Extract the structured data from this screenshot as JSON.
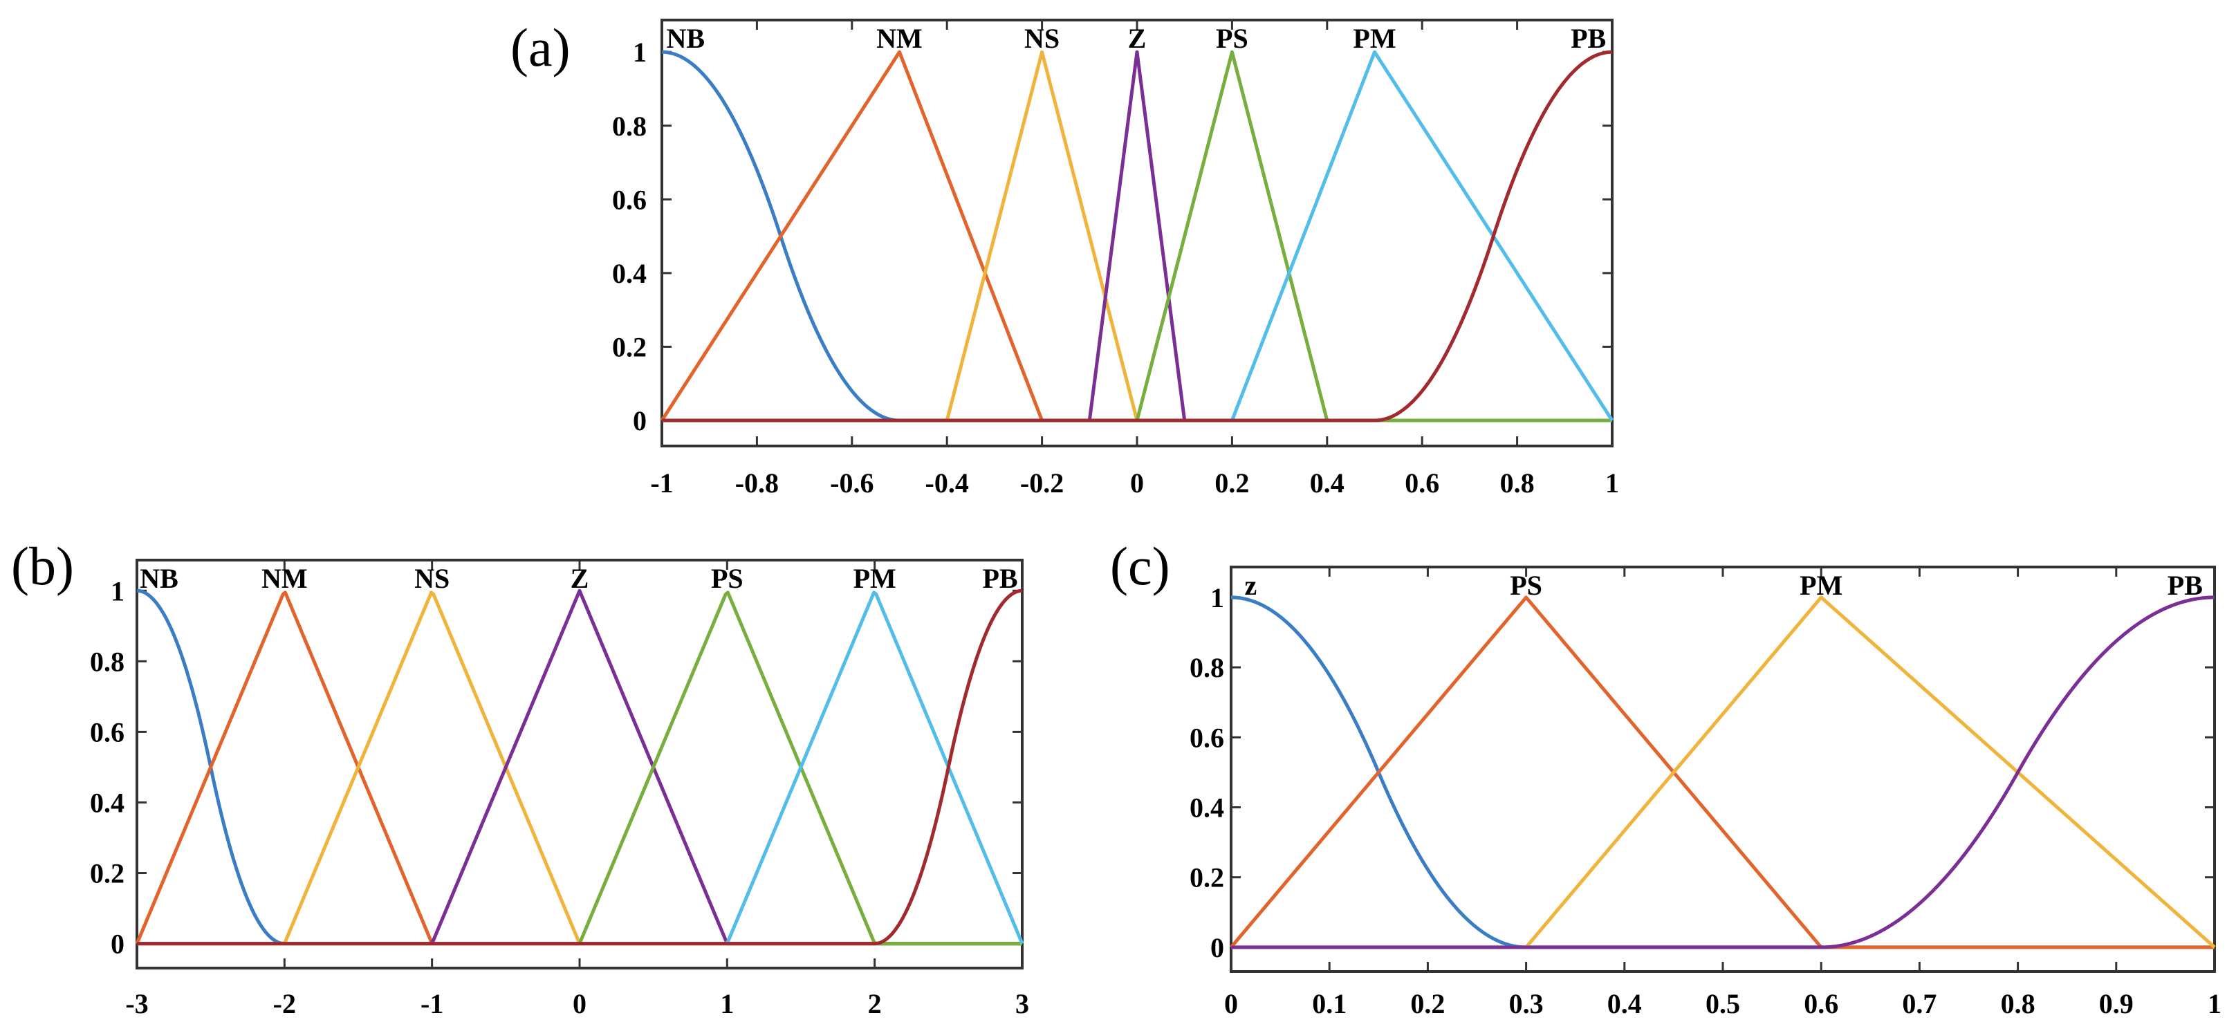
{
  "chart_data": [
    {
      "panel_label": "(a)",
      "type": "line",
      "xlim": [
        -1,
        1
      ],
      "ylim": [
        0,
        1
      ],
      "xticks": [
        "-1",
        "-0.8",
        "-0.6",
        "-0.4",
        "-0.2",
        "0",
        "0.2",
        "0.4",
        "0.6",
        "0.8",
        "1"
      ],
      "xtick_values": [
        -1,
        -0.8,
        -0.6,
        -0.4,
        -0.2,
        0,
        0.2,
        0.4,
        0.6,
        0.8,
        1
      ],
      "yticks": [
        "0",
        "0.2",
        "0.4",
        "0.6",
        "0.8",
        "1"
      ],
      "ytick_values": [
        0,
        0.2,
        0.4,
        0.6,
        0.8,
        1
      ],
      "grid": false,
      "series": [
        {
          "name": "NB",
          "shape": "zmf",
          "params": [
            -1,
            -0.5
          ],
          "label_x": -0.95,
          "color": "#3A7DC4"
        },
        {
          "name": "NM",
          "shape": "trimf",
          "params": [
            -1,
            -0.5,
            -0.2
          ],
          "label_x": -0.5,
          "color": "#E0642C"
        },
        {
          "name": "NS",
          "shape": "trimf",
          "params": [
            -0.4,
            -0.2,
            0
          ],
          "label_x": -0.2,
          "color": "#F0B43C"
        },
        {
          "name": "Z",
          "shape": "trimf",
          "params": [
            -0.1,
            0,
            0.1
          ],
          "label_x": 0,
          "color": "#7B2F95"
        },
        {
          "name": "PS",
          "shape": "trimf",
          "params": [
            0,
            0.2,
            0.4
          ],
          "label_x": 0.2,
          "color": "#77AE3E"
        },
        {
          "name": "PM",
          "shape": "trimf",
          "params": [
            0.2,
            0.5,
            1
          ],
          "label_x": 0.5,
          "color": "#52BDE8"
        },
        {
          "name": "PB",
          "shape": "smf",
          "params": [
            0.5,
            1
          ],
          "label_x": 0.95,
          "color": "#A12A2F"
        }
      ]
    },
    {
      "panel_label": "(b)",
      "type": "line",
      "xlim": [
        -3,
        3
      ],
      "ylim": [
        0,
        1
      ],
      "xticks": [
        "-3",
        "-2",
        "-1",
        "0",
        "1",
        "2",
        "3"
      ],
      "xtick_values": [
        -3,
        -2,
        -1,
        0,
        1,
        2,
        3
      ],
      "yticks": [
        "0",
        "0.2",
        "0.4",
        "0.6",
        "0.8",
        "1"
      ],
      "ytick_values": [
        0,
        0.2,
        0.4,
        0.6,
        0.8,
        1
      ],
      "grid": false,
      "series": [
        {
          "name": "NB",
          "shape": "zmf",
          "params": [
            -3,
            -2
          ],
          "label_x": -2.85,
          "color": "#3A7DC4"
        },
        {
          "name": "NM",
          "shape": "trimf",
          "params": [
            -3,
            -2,
            -1
          ],
          "label_x": -2,
          "color": "#E0642C"
        },
        {
          "name": "NS",
          "shape": "trimf",
          "params": [
            -2,
            -1,
            0
          ],
          "label_x": -1,
          "color": "#F0B43C"
        },
        {
          "name": "Z",
          "shape": "trimf",
          "params": [
            -1,
            0,
            1
          ],
          "label_x": 0,
          "color": "#7B2F95"
        },
        {
          "name": "PS",
          "shape": "trimf",
          "params": [
            0,
            1,
            2
          ],
          "label_x": 1,
          "color": "#77AE3E"
        },
        {
          "name": "PM",
          "shape": "trimf",
          "params": [
            1,
            2,
            3
          ],
          "label_x": 2,
          "color": "#52BDE8"
        },
        {
          "name": "PB",
          "shape": "smf",
          "params": [
            2,
            3
          ],
          "label_x": 2.85,
          "color": "#A12A2F"
        }
      ]
    },
    {
      "panel_label": "(c)",
      "type": "line",
      "xlim": [
        0,
        1
      ],
      "ylim": [
        0,
        1
      ],
      "xticks": [
        "0",
        "0.1",
        "0.2",
        "0.3",
        "0.4",
        "0.5",
        "0.6",
        "0.7",
        "0.8",
        "0.9",
        "1"
      ],
      "xtick_values": [
        0,
        0.1,
        0.2,
        0.3,
        0.4,
        0.5,
        0.6,
        0.7,
        0.8,
        0.9,
        1
      ],
      "yticks": [
        "0",
        "0.2",
        "0.4",
        "0.6",
        "0.8",
        "1"
      ],
      "ytick_values": [
        0,
        0.2,
        0.4,
        0.6,
        0.8,
        1
      ],
      "grid": false,
      "series": [
        {
          "name": "z",
          "shape": "zmf",
          "params": [
            0,
            0.3
          ],
          "label_x": 0.02,
          "color": "#3A7DC4"
        },
        {
          "name": "PS",
          "shape": "trimf",
          "params": [
            0,
            0.3,
            0.6
          ],
          "label_x": 0.3,
          "color": "#E0642C"
        },
        {
          "name": "PM",
          "shape": "trimf",
          "params": [
            0.3,
            0.6,
            1
          ],
          "label_x": 0.6,
          "color": "#F0B43C"
        },
        {
          "name": "PB",
          "shape": "smf",
          "params": [
            0.6,
            1
          ],
          "label_x": 0.97,
          "color": "#7B2F95"
        }
      ]
    }
  ]
}
